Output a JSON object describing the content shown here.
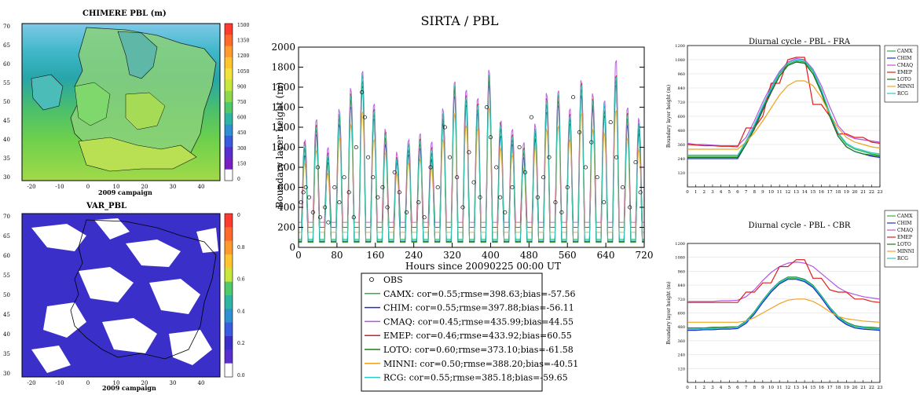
{
  "figure": {
    "title": "SIRTA / PBL"
  },
  "colors": {
    "OBS": "#000000",
    "CAMX": "#2db34a",
    "CHIM": "#1f2bd6",
    "CMAQ": "#b455e0",
    "EMEP": "#e01c1c",
    "LOTO": "#1b7a1b",
    "MINNI": "#f0a21e",
    "RCG": "#29c9c9"
  },
  "maps": {
    "top": {
      "title": "CHIMERE    PBL (m)",
      "subtitle": "2009 campaign",
      "lat_labels": [
        "70",
        "65",
        "60",
        "55",
        "50",
        "45",
        "40",
        "35",
        "30"
      ],
      "lon_labels": [
        "-20",
        "-10",
        "0",
        "10",
        "20",
        "30",
        "40"
      ],
      "colorbar_labels": [
        "1500",
        "1350",
        "1200",
        "1050",
        "900",
        "750",
        "600",
        "450",
        "300",
        "150",
        "0"
      ]
    },
    "bottom": {
      "title": "VAR_PBL",
      "subtitle": "2009 campaign",
      "lat_labels": [
        "70",
        "65",
        "60",
        "55",
        "50",
        "45",
        "40",
        "35",
        "30"
      ],
      "lon_labels": [
        "-20",
        "-10",
        "0",
        "10",
        "20",
        "30",
        "40"
      ],
      "colorbar_labels": [
        "0",
        "0.8",
        "0.6",
        "0.4",
        "0.2",
        "0.0"
      ]
    }
  },
  "chart_data": [
    {
      "type": "line",
      "title": "SIRTA / PBL",
      "xlabel": "Hours since 20090225 00:00 UT",
      "ylabel": "Boundary layer height (m)",
      "xlim": [
        0,
        720
      ],
      "ylim": [
        0,
        2000
      ],
      "xticks": [
        0,
        80,
        160,
        240,
        320,
        400,
        480,
        560,
        640,
        720
      ],
      "yticks": [
        0,
        200,
        400,
        600,
        800,
        1000,
        1200,
        1400,
        1600,
        1800,
        2000
      ],
      "x_daily_peak_hours": [
        14,
        38,
        62,
        86,
        110,
        134,
        158,
        182,
        206,
        230,
        254,
        278,
        302,
        326,
        350,
        374,
        398,
        422,
        446,
        470,
        494,
        518,
        542,
        566,
        590,
        614,
        638,
        662,
        686,
        710
      ],
      "series": [
        {
          "name": "CAMX",
          "daily_peak": [
            1000,
            1200,
            900,
            1300,
            1500,
            1700,
            1350,
            1100,
            900,
            1000,
            1050,
            950,
            1300,
            1600,
            1500,
            1400,
            1700,
            1200,
            1100,
            950,
            1150,
            1450,
            1500,
            1300,
            1600,
            1450,
            1400,
            1700,
            1300,
            1200
          ],
          "night_min": 80
        },
        {
          "name": "CHIM",
          "daily_peak": [
            950,
            1150,
            850,
            1250,
            1450,
            1650,
            1300,
            1050,
            850,
            950,
            1000,
            900,
            1250,
            1550,
            1450,
            1350,
            1650,
            1150,
            1050,
            900,
            1100,
            1400,
            1450,
            1250,
            1550,
            1400,
            1350,
            1650,
            1250,
            1150
          ],
          "night_min": 60
        },
        {
          "name": "CMAQ",
          "daily_peak": [
            1100,
            1300,
            1000,
            1400,
            1600,
            1800,
            1450,
            1200,
            950,
            1100,
            1150,
            1050,
            1400,
            1700,
            1600,
            1500,
            1800,
            1300,
            1200,
            1050,
            1250,
            1550,
            1600,
            1400,
            1700,
            1550,
            1500,
            1900,
            1400,
            1300
          ],
          "night_min": 250
        },
        {
          "name": "EMEP",
          "daily_peak": [
            1050,
            1250,
            950,
            1350,
            1550,
            1750,
            1400,
            1150,
            900,
            1050,
            1100,
            1000,
            1350,
            1650,
            1550,
            1450,
            1750,
            1250,
            1150,
            1000,
            1200,
            1500,
            1550,
            1350,
            1650,
            1500,
            1450,
            1750,
            1350,
            1250
          ],
          "night_min": 200
        },
        {
          "name": "LOTO",
          "daily_peak": [
            1000,
            1200,
            900,
            1300,
            1500,
            1700,
            1350,
            1100,
            900,
            1000,
            1050,
            950,
            1300,
            1600,
            1500,
            1400,
            1700,
            1200,
            1100,
            950,
            1150,
            1450,
            1500,
            1300,
            1600,
            1450,
            1400,
            1700,
            1300,
            1200
          ],
          "night_min": 50
        },
        {
          "name": "MINNI",
          "daily_peak": [
            850,
            1000,
            750,
            1100,
            1250,
            1400,
            1100,
            950,
            750,
            850,
            900,
            800,
            1100,
            1350,
            1250,
            1200,
            1400,
            1000,
            950,
            800,
            1000,
            1200,
            1250,
            1100,
            1350,
            1200,
            1150,
            1400,
            1100,
            1000
          ],
          "night_min": 150
        },
        {
          "name": "RCG",
          "daily_peak": [
            1050,
            1250,
            950,
            1350,
            1550,
            1750,
            1400,
            1150,
            900,
            1050,
            1100,
            1000,
            1350,
            1650,
            1550,
            1450,
            1750,
            1250,
            1150,
            1000,
            1200,
            1500,
            1550,
            1350,
            1650,
            1500,
            1450,
            1750,
            1350,
            1250
          ],
          "night_min": 70
        }
      ],
      "obs_points": [
        [
          5,
          450
        ],
        [
          10,
          550
        ],
        [
          15,
          600
        ],
        [
          22,
          500
        ],
        [
          30,
          350
        ],
        [
          40,
          800
        ],
        [
          45,
          300
        ],
        [
          55,
          400
        ],
        [
          62,
          250
        ],
        [
          75,
          600
        ],
        [
          85,
          450
        ],
        [
          95,
          700
        ],
        [
          105,
          550
        ],
        [
          115,
          300
        ],
        [
          120,
          1000
        ],
        [
          132,
          1550
        ],
        [
          138,
          1300
        ],
        [
          145,
          900
        ],
        [
          155,
          700
        ],
        [
          165,
          500
        ],
        [
          175,
          600
        ],
        [
          185,
          400
        ],
        [
          200,
          750
        ],
        [
          210,
          550
        ],
        [
          225,
          350
        ],
        [
          250,
          450
        ],
        [
          262,
          300
        ],
        [
          275,
          800
        ],
        [
          290,
          600
        ],
        [
          305,
          1200
        ],
        [
          315,
          900
        ],
        [
          330,
          700
        ],
        [
          342,
          400
        ],
        [
          355,
          950
        ],
        [
          365,
          650
        ],
        [
          378,
          500
        ],
        [
          392,
          1400
        ],
        [
          400,
          1100
        ],
        [
          412,
          800
        ],
        [
          420,
          500
        ],
        [
          430,
          350
        ],
        [
          445,
          600
        ],
        [
          460,
          1000
        ],
        [
          472,
          750
        ],
        [
          485,
          1300
        ],
        [
          498,
          500
        ],
        [
          510,
          700
        ],
        [
          522,
          900
        ],
        [
          535,
          450
        ],
        [
          548,
          350
        ],
        [
          560,
          600
        ],
        [
          572,
          1500
        ],
        [
          585,
          1150
        ],
        [
          598,
          800
        ],
        [
          610,
          1050
        ],
        [
          622,
          700
        ],
        [
          636,
          450
        ],
        [
          650,
          1250
        ],
        [
          662,
          900
        ],
        [
          675,
          600
        ],
        [
          690,
          400
        ],
        [
          702,
          850
        ],
        [
          712,
          550
        ]
      ],
      "legend": {
        "placement": "bottom",
        "entries": [
          {
            "key": "OBS",
            "text": "OBS",
            "marker": "circle"
          },
          {
            "key": "CAMX",
            "text": "CAMX: cor=0.55;rmse=398.63;bias=-57.56"
          },
          {
            "key": "CHIM",
            "text": "CHIM: cor=0.55;rmse=397.88;bias=-56.11"
          },
          {
            "key": "CMAQ",
            "text": "CMAQ: cor=0.45;rmse=435.99;bias=44.55"
          },
          {
            "key": "EMEP",
            "text": "EMEP: cor=0.46;rmse=433.92;bias=60.55"
          },
          {
            "key": "LOTO",
            "text": "LOTO: cor=0.60;rmse=373.10;bias=-61.58"
          },
          {
            "key": "MINNI",
            "text": "MINNI: cor=0.50;rmse=388.20;bias=-40.51"
          },
          {
            "key": "RCG",
            "text": "RCG: cor=0.55;rmse=385.18;bias=-59.65"
          }
        ]
      }
    },
    {
      "type": "line",
      "title": "Diurnal cycle - PBL - FRA",
      "xlabel": "",
      "ylabel": "Boundary layer height (m)",
      "xlim": [
        0,
        23
      ],
      "ylim": [
        0,
        1200
      ],
      "xticks": [
        0,
        1,
        2,
        3,
        4,
        5,
        6,
        7,
        8,
        9,
        10,
        11,
        12,
        13,
        14,
        15,
        16,
        17,
        18,
        19,
        20,
        21,
        22,
        23
      ],
      "ytick_labels": [
        "120",
        "240",
        "360",
        "480",
        "600",
        "720",
        "840",
        "960",
        "1080",
        "1200"
      ],
      "legend_labels": [
        "CAMX",
        "CHIM",
        "CMAQ",
        "EMEP",
        "LOTO",
        "MINNI",
        "RCG"
      ],
      "series": [
        {
          "name": "CAMX",
          "values": [
            260,
            260,
            260,
            260,
            260,
            260,
            260,
            380,
            520,
            680,
            830,
            960,
            1040,
            1070,
            1060,
            980,
            820,
            620,
            450,
            360,
            320,
            300,
            280,
            270
          ]
        },
        {
          "name": "CHIM",
          "values": [
            240,
            240,
            240,
            240,
            240,
            240,
            240,
            360,
            500,
            660,
            810,
            940,
            1030,
            1060,
            1050,
            960,
            800,
            600,
            430,
            340,
            300,
            280,
            260,
            250
          ]
        },
        {
          "name": "CMAQ",
          "values": [
            370,
            360,
            360,
            355,
            350,
            350,
            350,
            420,
            560,
            720,
            860,
            980,
            1060,
            1090,
            1080,
            1000,
            860,
            680,
            520,
            440,
            410,
            400,
            390,
            380
          ]
        },
        {
          "name": "EMEP",
          "values": [
            360,
            355,
            350,
            350,
            345,
            345,
            340,
            500,
            500,
            600,
            880,
            880,
            1080,
            1100,
            1100,
            700,
            700,
            600,
            450,
            450,
            420,
            420,
            380,
            370
          ]
        },
        {
          "name": "LOTO",
          "values": [
            250,
            250,
            250,
            250,
            250,
            250,
            250,
            360,
            490,
            650,
            800,
            940,
            1030,
            1060,
            1050,
            960,
            800,
            600,
            430,
            340,
            300,
            280,
            270,
            260
          ]
        },
        {
          "name": "MINNI",
          "values": [
            320,
            320,
            320,
            320,
            320,
            320,
            320,
            380,
            460,
            560,
            670,
            780,
            860,
            900,
            900,
            860,
            760,
            620,
            500,
            420,
            380,
            360,
            340,
            330
          ]
        },
        {
          "name": "RCG",
          "values": [
            270,
            270,
            270,
            270,
            270,
            270,
            270,
            390,
            530,
            690,
            840,
            970,
            1050,
            1080,
            1070,
            990,
            830,
            630,
            460,
            370,
            330,
            310,
            290,
            280
          ]
        }
      ]
    },
    {
      "type": "line",
      "title": "Diurnal cycle - PBL - CBR",
      "xlabel": "",
      "ylabel": "Boundary layer height (m)",
      "xlim": [
        0,
        23
      ],
      "ylim": [
        0,
        1200
      ],
      "xticks": [
        0,
        1,
        2,
        3,
        4,
        5,
        6,
        7,
        8,
        9,
        10,
        11,
        12,
        13,
        14,
        15,
        16,
        17,
        18,
        19,
        20,
        21,
        22,
        23
      ],
      "ytick_labels": [
        "120",
        "240",
        "360",
        "480",
        "600",
        "720",
        "840",
        "960",
        "1080",
        "1200"
      ],
      "legend_labels": [
        "CAMX",
        "CHIM",
        "CMAQ",
        "EMEP",
        "LOTO",
        "MINNI",
        "RCG"
      ],
      "series": [
        {
          "name": "CAMX",
          "values": [
            460,
            460,
            465,
            465,
            470,
            470,
            475,
            520,
            600,
            700,
            790,
            860,
            900,
            900,
            880,
            830,
            740,
            640,
            560,
            510,
            480,
            470,
            465,
            460
          ]
        },
        {
          "name": "CHIM",
          "values": [
            450,
            450,
            455,
            455,
            460,
            460,
            465,
            510,
            590,
            690,
            780,
            850,
            890,
            890,
            870,
            820,
            730,
            630,
            550,
            500,
            470,
            460,
            455,
            450
          ]
        },
        {
          "name": "CMAQ",
          "values": [
            700,
            700,
            700,
            700,
            705,
            705,
            710,
            740,
            800,
            880,
            950,
            1000,
            1030,
            1040,
            1030,
            1000,
            940,
            880,
            820,
            780,
            760,
            740,
            730,
            720
          ]
        },
        {
          "name": "EMEP",
          "values": [
            690,
            690,
            690,
            690,
            690,
            690,
            690,
            780,
            780,
            860,
            860,
            1000,
            1000,
            1060,
            1060,
            900,
            900,
            800,
            780,
            780,
            720,
            720,
            700,
            690
          ]
        },
        {
          "name": "LOTO",
          "values": [
            470,
            470,
            470,
            475,
            475,
            480,
            480,
            530,
            610,
            710,
            800,
            870,
            910,
            910,
            890,
            840,
            750,
            650,
            570,
            520,
            490,
            480,
            475,
            470
          ]
        },
        {
          "name": "MINNI",
          "values": [
            520,
            520,
            520,
            520,
            520,
            520,
            520,
            530,
            560,
            600,
            640,
            680,
            710,
            720,
            720,
            700,
            660,
            610,
            570,
            550,
            540,
            530,
            525,
            520
          ]
        },
        {
          "name": "RCG",
          "values": [
            460,
            460,
            465,
            465,
            470,
            470,
            475,
            525,
            605,
            705,
            795,
            865,
            905,
            905,
            885,
            835,
            745,
            645,
            565,
            515,
            485,
            475,
            470,
            465
          ]
        }
      ]
    }
  ]
}
